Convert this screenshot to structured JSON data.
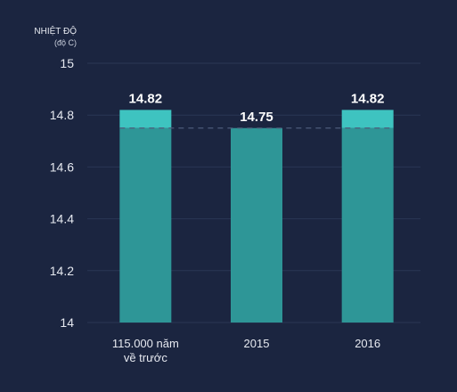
{
  "chart_data": {
    "type": "bar",
    "ylabel": "NHIỆT ĐỘ",
    "yunit": "(độ C)",
    "categories": [
      [
        "115.000 năm",
        "về trước"
      ],
      [
        "2015"
      ],
      [
        "2016"
      ]
    ],
    "values": [
      14.82,
      14.75,
      14.82
    ],
    "value_labels": [
      "14.82",
      "14.75",
      "14.82"
    ],
    "reference_value": 14.75,
    "ylim": [
      14,
      15
    ],
    "yticks": [
      14,
      14.2,
      14.4,
      14.6,
      14.8,
      15
    ],
    "ytick_labels": [
      "14",
      "14.2",
      "14.4",
      "14.6",
      "14.8",
      "15"
    ],
    "grid": true,
    "colors": {
      "background": "#1b2540",
      "bar": "#2e9697",
      "bar_excess": "#3ec3c0",
      "gridline": "#2b3654",
      "reference_line": "#4d5b7a",
      "axis_text": "#e6e9f0",
      "value_text": "#ffffff"
    }
  }
}
